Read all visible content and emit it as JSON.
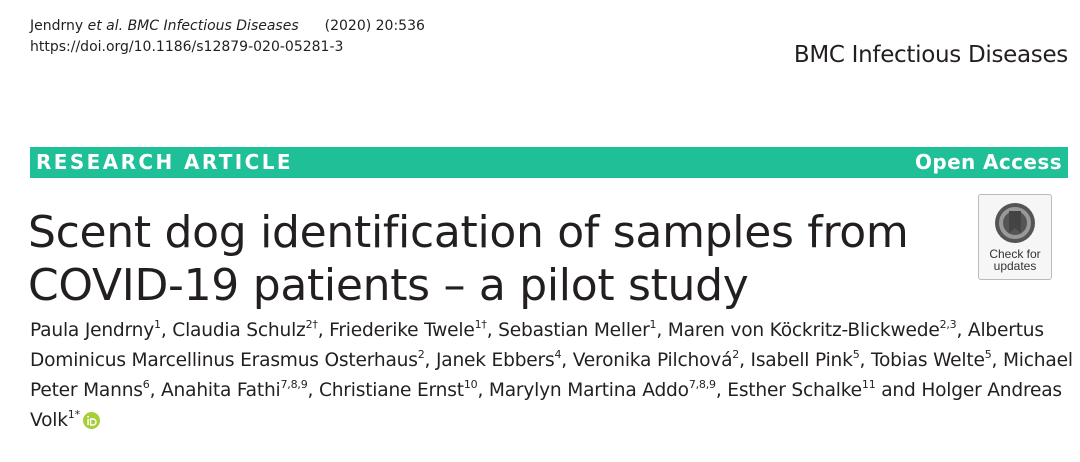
{
  "header": {
    "author": "Jendrny",
    "etal": "et al.",
    "journal": "BMC Infectious Diseases",
    "year_volume": "(2020) 20:536",
    "doi": "https://doi.org/10.1186/s12879-020-05281-3",
    "journal_name": "BMC Infectious Diseases"
  },
  "banner": {
    "type": "RESEARCH ARTICLE",
    "access": "Open Access"
  },
  "title": {
    "lines": [
      "Scent dog identification of samples from",
      "COVID-19 patients – a pilot study"
    ]
  },
  "badge": {
    "lines": [
      "Check for",
      "updates"
    ]
  },
  "authors": [
    {
      "name": "Paula Jendrny",
      "sup": "1",
      "sep": ","
    },
    {
      "name": "Claudia Schulz",
      "sup": "2†",
      "sep": ","
    },
    {
      "name": "Friederike Twele",
      "sup": "1†",
      "sep": ","
    },
    {
      "name": "Sebastian Meller",
      "sup": "1",
      "sep": ","
    },
    {
      "name": "Maren von Köckritz-Blickwede",
      "sup": "2,3",
      "sep": ","
    },
    {
      "name": "Albertus Dominicus Marcellinus Erasmus Osterhaus",
      "sup": "2",
      "sep": ","
    },
    {
      "name": "Janek Ebbers",
      "sup": "4",
      "sep": ","
    },
    {
      "name": "Veronika Pilchová",
      "sup": "2",
      "sep": ","
    },
    {
      "name": "Isabell Pink",
      "sup": "5",
      "sep": ","
    },
    {
      "name": "Tobias Welte",
      "sup": "5",
      "sep": ","
    },
    {
      "name": "Michael Peter Manns",
      "sup": "6",
      "sep": ","
    },
    {
      "name": "Anahita Fathi",
      "sup": "7,8,9",
      "sep": ","
    },
    {
      "name": "Christiane Ernst",
      "sup": "10",
      "sep": ","
    },
    {
      "name": "Marylyn Martina Addo",
      "sup": "7,8,9",
      "sep": ","
    },
    {
      "name": "Esther Schalke",
      "sup": "11",
      "sep": "and"
    },
    {
      "name": "Holger Andreas Volk",
      "sup": "1*"
    }
  ]
}
